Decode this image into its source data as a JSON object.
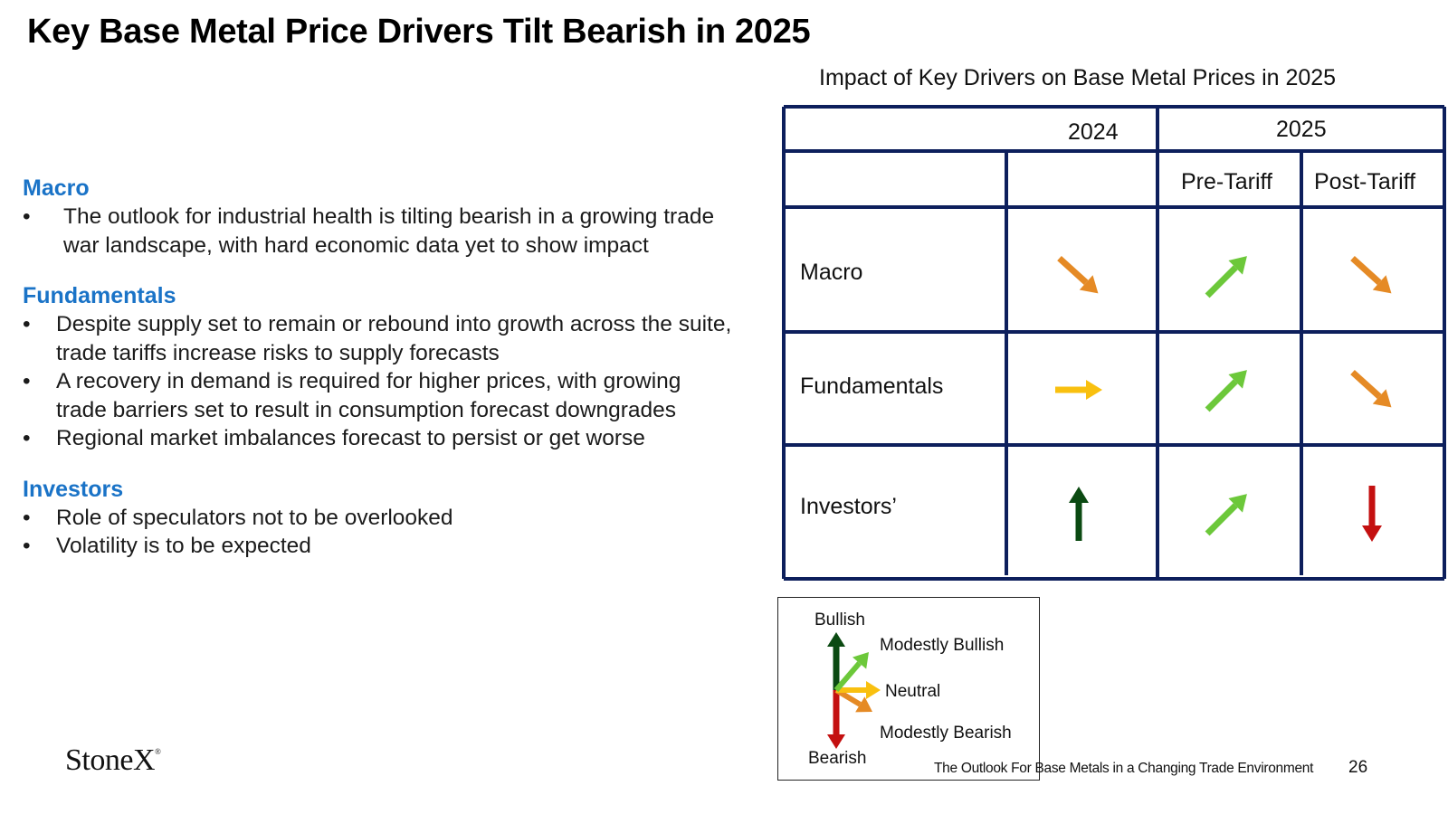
{
  "page": {
    "title": "Key Base Metal Price Drivers Tilt Bearish in 2025"
  },
  "sections": [
    {
      "heading": "Macro",
      "bullets": [
        "The outlook for industrial health is tilting bearish in a growing trade war landscape, with hard economic data yet to show impact"
      ]
    },
    {
      "heading": "Fundamentals",
      "bullets": [
        "Despite supply set to remain or rebound into growth across the suite, trade tariffs increase risks to supply forecasts",
        "A recovery in demand is required for higher prices, with growing trade barriers set to result in consumption forecast downgrades",
        "Regional market imbalances forecast to persist or get worse"
      ]
    },
    {
      "heading": "Investors",
      "bullets": [
        "Role of speculators not to be overlooked",
        "Volatility is to be expected"
      ]
    }
  ],
  "table": {
    "title": "Impact of Key Drivers on Base Metal Prices in 2025",
    "year_2024": "2024",
    "year_2025": "2025",
    "pre_tariff": "Pre-Tariff",
    "post_tariff": "Post-Tariff",
    "rows": [
      {
        "label": "Macro",
        "ratings": [
          "modestly-bearish",
          "modestly-bullish",
          "modestly-bearish"
        ]
      },
      {
        "label": "Fundamentals",
        "ratings": [
          "neutral",
          "modestly-bullish",
          "modestly-bearish"
        ]
      },
      {
        "label": "Investors’",
        "ratings": [
          "bullish",
          "modestly-bullish",
          "bearish"
        ]
      }
    ],
    "border_color": "#0d1f5c"
  },
  "legend": {
    "bullish": "Bullish",
    "modestly_bullish": "Modestly Bullish",
    "neutral": "Neutral",
    "modestly_bearish": "Modestly Bearish",
    "bearish": "Bearish"
  },
  "colors": {
    "bullish": "#0b4a12",
    "modestly_bullish": "#6cc83a",
    "neutral": "#f9c00f",
    "modestly_bearish": "#e58a25",
    "bearish": "#c41010",
    "heading_blue": "#1a73c7"
  },
  "footer": {
    "logo": "StoneX",
    "logo_mark": "®",
    "text": "The Outlook For Base Metals in a Changing Trade Environment",
    "page_number": "26"
  }
}
